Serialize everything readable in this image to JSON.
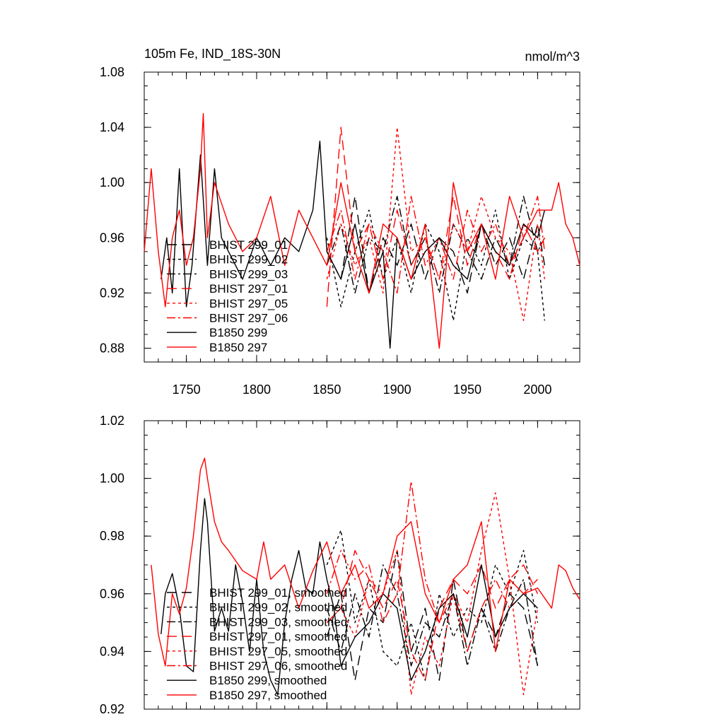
{
  "figure": {
    "title_left": "105m Fe, IND_18S-30N",
    "title_right": "nmol/m^3"
  },
  "chart_data": [
    {
      "type": "line",
      "title": "105m Fe, IND_18S-30N",
      "units": "nmol/m^3",
      "xlim": [
        1720,
        2030
      ],
      "ylim": [
        0.87,
        1.08
      ],
      "x_ticks": [
        1750,
        1800,
        1850,
        1900,
        1950,
        2000
      ],
      "y_ticks": [
        0.88,
        0.92,
        0.96,
        1.0,
        1.04,
        1.08
      ],
      "y_tick_labels": [
        "0.88",
        "0.92",
        "0.96",
        "1.00",
        "1.04",
        "1.08"
      ],
      "x_tick_labels": [
        "1750",
        "1800",
        "1850",
        "1900",
        "1950",
        "2000"
      ],
      "legend_position": "lower-left",
      "series": [
        {
          "name": "BHIST 299_01",
          "color": "#000000",
          "dash": "long",
          "x": [
            1850,
            1860,
            1870,
            1880,
            1890,
            1900,
            1910,
            1920,
            1930,
            1940,
            1950,
            1960,
            1970,
            1980,
            1990,
            2000,
            2005
          ],
          "y": [
            0.95,
            0.93,
            0.99,
            0.92,
            0.96,
            0.94,
            0.97,
            0.93,
            0.96,
            0.95,
            0.92,
            0.97,
            0.94,
            0.96,
            0.93,
            0.97,
            0.94
          ]
        },
        {
          "name": "BHIST 299_02",
          "color": "#000000",
          "dash": "short",
          "x": [
            1850,
            1860,
            1870,
            1880,
            1890,
            1900,
            1910,
            1920,
            1930,
            1940,
            1950,
            1960,
            1970,
            1980,
            1990,
            2000,
            2005
          ],
          "y": [
            0.96,
            0.91,
            0.95,
            0.98,
            0.93,
            0.96,
            0.92,
            0.97,
            0.95,
            0.9,
            0.96,
            0.94,
            0.98,
            0.93,
            0.96,
            0.95,
            0.9
          ]
        },
        {
          "name": "BHIST 299_03",
          "color": "#000000",
          "dash": "dashdot",
          "x": [
            1850,
            1860,
            1870,
            1880,
            1890,
            1900,
            1910,
            1920,
            1930,
            1940,
            1950,
            1960,
            1970,
            1980,
            1990,
            2000,
            2005
          ],
          "y": [
            0.94,
            0.97,
            0.92,
            0.96,
            0.95,
            0.99,
            0.94,
            0.96,
            0.92,
            0.97,
            0.95,
            0.93,
            0.96,
            0.94,
            0.99,
            0.95,
            0.96
          ]
        },
        {
          "name": "BHIST 297_01",
          "color": "#ff0000",
          "dash": "long",
          "x": [
            1850,
            1860,
            1870,
            1880,
            1890,
            1900,
            1910,
            1920,
            1930,
            1940,
            1950,
            1960,
            1970,
            1980,
            1990,
            2000,
            2005
          ],
          "y": [
            0.91,
            1.04,
            0.95,
            0.97,
            0.93,
            0.98,
            0.94,
            0.96,
            0.93,
            0.99,
            0.94,
            0.97,
            0.95,
            0.93,
            0.97,
            0.95,
            0.96
          ]
        },
        {
          "name": "BHIST 297_05",
          "color": "#ff0000",
          "dash": "short",
          "x": [
            1850,
            1860,
            1870,
            1880,
            1890,
            1900,
            1910,
            1920,
            1930,
            1940,
            1950,
            1960,
            1970,
            1980,
            1990,
            2000,
            2005
          ],
          "y": [
            0.93,
            0.97,
            0.94,
            0.96,
            0.92,
            1.04,
            0.95,
            0.96,
            0.93,
            0.97,
            0.95,
            0.99,
            0.96,
            0.95,
            0.9,
            0.97,
            0.93
          ]
        },
        {
          "name": "BHIST 297_06",
          "color": "#ff0000",
          "dash": "dashdot",
          "x": [
            1850,
            1860,
            1870,
            1880,
            1890,
            1900,
            1910,
            1920,
            1930,
            1940,
            1950,
            1960,
            1970,
            1980,
            1990,
            2000,
            2005
          ],
          "y": [
            0.95,
            0.98,
            0.93,
            0.97,
            0.95,
            0.92,
            0.99,
            0.94,
            0.96,
            0.93,
            0.98,
            0.95,
            0.97,
            0.94,
            0.96,
            0.99,
            0.95
          ]
        },
        {
          "name": "B1850 299",
          "color": "#000000",
          "dash": "solid",
          "x": [
            1732,
            1736,
            1740,
            1745,
            1750,
            1754,
            1760,
            1765,
            1770,
            1775,
            1780,
            1790,
            1800,
            1810,
            1820,
            1830,
            1840,
            1845,
            1850,
            1860,
            1870,
            1880,
            1890,
            1895,
            1900,
            1910,
            1920,
            1930,
            1940,
            1950,
            1960,
            1970,
            1980,
            1990,
            2000,
            2005
          ],
          "y": [
            0.93,
            0.96,
            0.92,
            1.01,
            0.91,
            0.94,
            1.02,
            0.94,
            1.01,
            0.96,
            0.95,
            0.93,
            0.96,
            0.94,
            0.96,
            0.95,
            0.98,
            1.03,
            0.95,
            0.93,
            0.97,
            0.92,
            0.95,
            0.88,
            0.96,
            0.93,
            0.95,
            0.96,
            0.94,
            0.93,
            0.97,
            0.95,
            0.94,
            0.97,
            0.96,
            0.98
          ]
        },
        {
          "name": "B1850 297",
          "color": "#ff0000",
          "dash": "solid",
          "x": [
            1720,
            1725,
            1730,
            1735,
            1740,
            1745,
            1750,
            1755,
            1760,
            1762,
            1765,
            1770,
            1780,
            1790,
            1800,
            1810,
            1820,
            1830,
            1840,
            1850,
            1860,
            1870,
            1880,
            1890,
            1900,
            1910,
            1920,
            1930,
            1940,
            1950,
            1960,
            1970,
            1980,
            1990,
            2000,
            2010,
            2015,
            2020,
            2025,
            2030
          ],
          "y": [
            0.95,
            1.01,
            0.95,
            0.91,
            0.96,
            0.98,
            0.94,
            0.96,
            1.01,
            1.05,
            0.96,
            1.0,
            0.97,
            0.95,
            0.96,
            0.99,
            0.94,
            0.98,
            0.96,
            0.94,
            1.0,
            0.95,
            0.92,
            0.97,
            0.96,
            0.93,
            0.97,
            0.88,
            1.0,
            0.95,
            0.97,
            0.93,
            0.99,
            0.96,
            0.98,
            0.98,
            1.0,
            0.97,
            0.96,
            0.94
          ]
        }
      ]
    },
    {
      "type": "line",
      "xlim": [
        1720,
        2030
      ],
      "ylim": [
        0.92,
        1.02
      ],
      "y_ticks": [
        0.92,
        0.94,
        0.96,
        0.98,
        1.0,
        1.02
      ],
      "y_tick_labels": [
        "0.92",
        "0.94",
        "0.96",
        "0.98",
        "1.00",
        "1.02"
      ],
      "x_ticks": [
        1750,
        1800,
        1850,
        1900,
        1950,
        2000
      ],
      "legend_position": "lower-left",
      "series": [
        {
          "name": "BHIST 299_01, smoothed",
          "color": "#000000",
          "dash": "long",
          "x": [
            1850,
            1860,
            1870,
            1880,
            1890,
            1900,
            1910,
            1920,
            1930,
            1940,
            1950,
            1960,
            1970,
            1980,
            1990,
            2000
          ],
          "y": [
            0.945,
            0.96,
            0.93,
            0.955,
            0.95,
            0.975,
            0.94,
            0.955,
            0.93,
            0.965,
            0.94,
            0.955,
            0.945,
            0.96,
            0.955,
            0.935
          ]
        },
        {
          "name": "BHIST 299_02, smoothed",
          "color": "#000000",
          "dash": "short",
          "x": [
            1850,
            1860,
            1870,
            1880,
            1890,
            1900,
            1910,
            1920,
            1930,
            1940,
            1950,
            1960,
            1970,
            1980,
            1990,
            2000
          ],
          "y": [
            0.97,
            0.982,
            0.95,
            0.965,
            0.94,
            0.935,
            0.95,
            0.93,
            0.96,
            0.945,
            0.955,
            0.95,
            0.97,
            0.96,
            0.975,
            0.95
          ]
        },
        {
          "name": "BHIST 299_03, smoothed",
          "color": "#000000",
          "dash": "dashdot",
          "x": [
            1850,
            1860,
            1870,
            1880,
            1890,
            1900,
            1910,
            1920,
            1930,
            1940,
            1950,
            1960,
            1970,
            1980,
            1990,
            2000
          ],
          "y": [
            0.955,
            0.94,
            0.96,
            0.945,
            0.97,
            0.96,
            0.935,
            0.95,
            0.945,
            0.96,
            0.935,
            0.955,
            0.94,
            0.955,
            0.965,
            0.935
          ]
        },
        {
          "name": "BHIST 297_01, smoothed",
          "color": "#ff0000",
          "dash": "long",
          "x": [
            1850,
            1860,
            1870,
            1880,
            1890,
            1900,
            1910,
            1920,
            1930,
            1940,
            1950,
            1960,
            1970,
            1980,
            1990,
            2000
          ],
          "y": [
            0.95,
            0.955,
            0.975,
            0.965,
            0.955,
            0.965,
            0.94,
            0.93,
            0.955,
            0.965,
            0.96,
            0.97,
            0.955,
            0.965,
            0.97,
            0.96
          ]
        },
        {
          "name": "BHIST 297_05, smoothed",
          "color": "#ff0000",
          "dash": "short",
          "x": [
            1850,
            1860,
            1870,
            1880,
            1890,
            1900,
            1910,
            1920,
            1930,
            1940,
            1950,
            1960,
            1970,
            1980,
            1990,
            2000
          ],
          "y": [
            0.95,
            0.955,
            0.945,
            0.965,
            0.96,
            0.975,
            0.925,
            0.945,
            0.935,
            0.96,
            0.95,
            0.975,
            0.995,
            0.965,
            0.925,
            0.955
          ]
        },
        {
          "name": "BHIST 297_06, smoothed",
          "color": "#ff0000",
          "dash": "dashdot",
          "x": [
            1850,
            1860,
            1870,
            1880,
            1890,
            1900,
            1910,
            1920,
            1930,
            1940,
            1950,
            1960,
            1970,
            1980,
            1990,
            2000
          ],
          "y": [
            0.96,
            0.975,
            0.965,
            0.97,
            0.95,
            0.96,
            0.999,
            0.965,
            0.95,
            0.96,
            0.94,
            0.955,
            0.965,
            0.955,
            0.96,
            0.965
          ]
        },
        {
          "name": "B1850 299, smoothed",
          "color": "#000000",
          "dash": "solid",
          "x": [
            1732,
            1735,
            1740,
            1745,
            1750,
            1755,
            1760,
            1763,
            1765,
            1770,
            1775,
            1780,
            1785,
            1790,
            1795,
            1800,
            1805,
            1810,
            1815,
            1820,
            1825,
            1830,
            1835,
            1840,
            1845,
            1850,
            1855,
            1860,
            1870,
            1880,
            1890,
            1900,
            1910,
            1920,
            1930,
            1940,
            1950,
            1960,
            1970,
            1980,
            1990,
            2000
          ],
          "y": [
            0.946,
            0.96,
            0.967,
            0.955,
            0.935,
            0.933,
            0.975,
            0.993,
            0.985,
            0.947,
            0.955,
            0.947,
            0.97,
            0.957,
            0.94,
            0.965,
            0.94,
            0.93,
            0.925,
            0.95,
            0.965,
            0.975,
            0.962,
            0.96,
            0.978,
            0.965,
            0.955,
            0.935,
            0.945,
            0.95,
            0.96,
            0.955,
            0.93,
            0.94,
            0.955,
            0.96,
            0.945,
            0.97,
            0.945,
            0.955,
            0.96,
            0.955
          ]
        },
        {
          "name": "B1850 297, smoothed",
          "color": "#ff0000",
          "dash": "solid",
          "x": [
            1725,
            1730,
            1735,
            1740,
            1745,
            1750,
            1755,
            1760,
            1763,
            1765,
            1770,
            1775,
            1780,
            1790,
            1800,
            1805,
            1810,
            1820,
            1830,
            1840,
            1850,
            1860,
            1870,
            1880,
            1890,
            1900,
            1910,
            1920,
            1930,
            1940,
            1950,
            1960,
            1970,
            1980,
            1990,
            2000,
            2010,
            2015,
            2020,
            2025,
            2030
          ],
          "y": [
            0.97,
            0.946,
            0.935,
            0.96,
            0.953,
            0.962,
            0.98,
            1.003,
            1.007,
            1.0,
            0.985,
            0.978,
            0.975,
            0.968,
            0.965,
            0.978,
            0.965,
            0.97,
            0.955,
            0.968,
            0.978,
            0.96,
            0.97,
            0.955,
            0.96,
            0.98,
            0.985,
            0.96,
            0.95,
            0.965,
            0.97,
            0.985,
            0.94,
            0.965,
            0.96,
            0.962,
            0.955,
            0.97,
            0.968,
            0.962,
            0.958
          ]
        }
      ]
    }
  ]
}
